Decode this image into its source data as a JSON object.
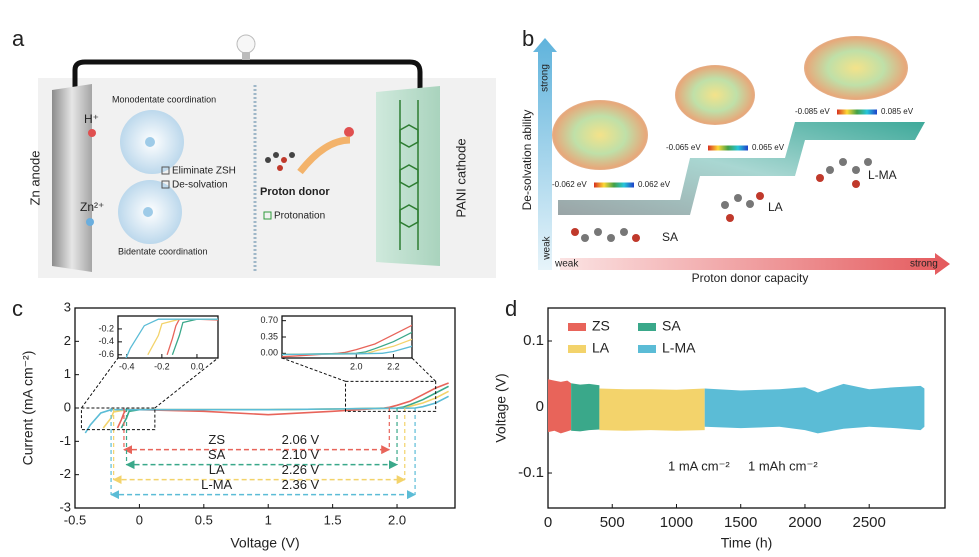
{
  "panel_labels": [
    "a",
    "b",
    "c",
    "d"
  ],
  "panel_a": {
    "anode": "Zn anode",
    "cathode": "PANI cathode",
    "h_ion": "H⁺",
    "zn_ion": "Zn²⁺",
    "monodentate": "Monodentate coordination",
    "bidentate": "Bidentate coordination",
    "checks": [
      "Eliminate ZSH",
      "De-solvation"
    ],
    "proton_donor": "Proton donor",
    "protonation": "Protonation"
  },
  "panel_b": {
    "y_label": "De-solvation ability",
    "y_high": "strong",
    "y_low": "weak",
    "x_label": "Proton donor capacity",
    "x_low": "weak",
    "x_high": "strong",
    "molecules": [
      {
        "name": "SA",
        "scale": [
          "-0.062 eV",
          "0.062 eV"
        ]
      },
      {
        "name": "LA",
        "scale": [
          "-0.065 eV",
          "0.065 eV"
        ]
      },
      {
        "name": "L-MA",
        "scale": [
          "-0.085 eV",
          "0.085 eV"
        ]
      }
    ]
  },
  "chart_data": [
    {
      "type": "line",
      "x_label": "Voltage (V)",
      "y_label": "Current (mA cm⁻²)",
      "xlim": [
        -0.5,
        2.45
      ],
      "ylim": [
        -3,
        3
      ],
      "xticks": [
        -0.5,
        0,
        0.5,
        1,
        1.5,
        {
          "value": 2,
          "label": "2.0"
        }
      ],
      "yticks": [
        -3,
        -2,
        -1,
        0,
        1,
        2,
        3
      ],
      "series": [
        {
          "name": "ZS",
          "color": "#e8645a",
          "x": [
            -0.17,
            -0.14,
            -0.12,
            -0.1,
            0,
            0.5,
            1,
            1.5,
            1.9,
            1.94,
            2.0,
            2.1,
            2.2,
            2.3,
            2.4
          ],
          "values": [
            -0.6,
            -0.35,
            -0.15,
            -0.05,
            -0.05,
            -0.1,
            -0.2,
            -0.1,
            0,
            0.02,
            0.08,
            0.2,
            0.4,
            0.6,
            0.75
          ],
          "window": {
            "value": 2.06,
            "label": "2.06 V",
            "x": [
              -0.12,
              1.94
            ]
          }
        },
        {
          "name": "SA",
          "color": "#3aa88a",
          "x": [
            -0.14,
            -0.1,
            -0.08,
            0,
            0.5,
            1,
            1.5,
            2.0,
            2.05,
            2.1,
            2.2,
            2.3,
            2.4
          ],
          "values": [
            -0.6,
            -0.3,
            -0.1,
            -0.05,
            -0.05,
            -0.05,
            -0.03,
            0,
            0.03,
            0.1,
            0.25,
            0.45,
            0.65
          ],
          "window": {
            "value": 2.1,
            "label": "2.10 V",
            "x": [
              -0.1,
              2.0
            ]
          }
        },
        {
          "name": "LA",
          "color": "#f3d36b",
          "x": [
            -0.28,
            -0.22,
            -0.2,
            -0.1,
            0,
            0.5,
            1,
            1.5,
            2.0,
            2.06,
            2.1,
            2.2,
            2.3,
            2.4
          ],
          "values": [
            -0.6,
            -0.3,
            -0.12,
            -0.05,
            -0.05,
            -0.05,
            -0.05,
            -0.03,
            -0.01,
            0,
            0.05,
            0.15,
            0.3,
            0.5
          ],
          "window": {
            "value": 2.26,
            "label": "2.26 V",
            "x": [
              -0.2,
              2.06
            ]
          }
        },
        {
          "name": "L-MA",
          "color": "#5bbcd6",
          "x": [
            -0.42,
            -0.38,
            -0.3,
            -0.22,
            -0.1,
            0,
            0.5,
            1,
            1.5,
            2.0,
            2.14,
            2.2,
            2.3,
            2.4
          ],
          "values": [
            -0.75,
            -0.5,
            -0.15,
            -0.05,
            -0.05,
            -0.05,
            -0.05,
            -0.05,
            -0.03,
            -0.01,
            0,
            0.04,
            0.15,
            0.35
          ],
          "window": {
            "value": 2.36,
            "label": "2.36 V",
            "x": [
              -0.22,
              2.14
            ]
          }
        }
      ],
      "insets": [
        {
          "xlim": [
            -0.45,
            0.12
          ],
          "ylim": [
            -0.65,
            0
          ],
          "xticks": [
            -0.4,
            -0.2,
            {
              "value": 0,
              "label": "0.0"
            }
          ],
          "yticks": [
            -0.2,
            -0.4,
            -0.6
          ]
        },
        {
          "xlim": [
            1.6,
            2.3
          ],
          "ylim": [
            -0.1,
            0.8
          ],
          "xticks": [
            {
              "value": 2,
              "label": "2.0"
            },
            2.2
          ],
          "yticks": [
            {
              "value": 0,
              "label": "0.00"
            },
            0.35,
            {
              "value": 0.7,
              "label": "0.70"
            }
          ]
        }
      ]
    },
    {
      "type": "band",
      "x_label": "Time (h)",
      "y_label": "Voltage (V)",
      "xlim": [
        0,
        3090
      ],
      "ylim": [
        -0.153,
        0.15
      ],
      "xticks": [
        0,
        500,
        1000,
        1500,
        2000,
        2500
      ],
      "yticks": [
        -0.1,
        0,
        0.1
      ],
      "series": [
        {
          "name": "ZS",
          "color": "#e8645a",
          "x": [
            0,
            50,
            100,
            150,
            180
          ],
          "high": [
            0.042,
            0.04,
            0.038,
            0.04,
            0.036
          ],
          "low": [
            -0.038,
            -0.036,
            -0.04,
            -0.037,
            -0.035
          ]
        },
        {
          "name": "SA",
          "color": "#3aa88a",
          "x": [
            180,
            250,
            320,
            400
          ],
          "high": [
            0.036,
            0.034,
            0.035,
            0.033
          ],
          "low": [
            -0.036,
            -0.037,
            -0.035,
            -0.034
          ]
        },
        {
          "name": "LA",
          "color": "#f3d36b",
          "x": [
            400,
            600,
            800,
            1000,
            1220
          ],
          "high": [
            0.028,
            0.027,
            0.027,
            0.026,
            0.028
          ],
          "low": [
            -0.035,
            -0.036,
            -0.035,
            -0.036,
            -0.035
          ]
        },
        {
          "name": "L-MA",
          "color": "#5bbcd6",
          "x": [
            1220,
            1500,
            1800,
            2000,
            2100,
            2300,
            2500,
            2700,
            2900,
            2930
          ],
          "high": [
            0.028,
            0.025,
            0.027,
            0.03,
            0.022,
            0.035,
            0.027,
            0.03,
            0.032,
            0.028
          ],
          "low": [
            -0.03,
            -0.032,
            -0.03,
            -0.035,
            -0.04,
            -0.033,
            -0.03,
            -0.032,
            -0.035,
            -0.03
          ]
        }
      ],
      "annotations": [
        "1 mA cm⁻²",
        "1 mAh cm⁻²"
      ]
    }
  ]
}
